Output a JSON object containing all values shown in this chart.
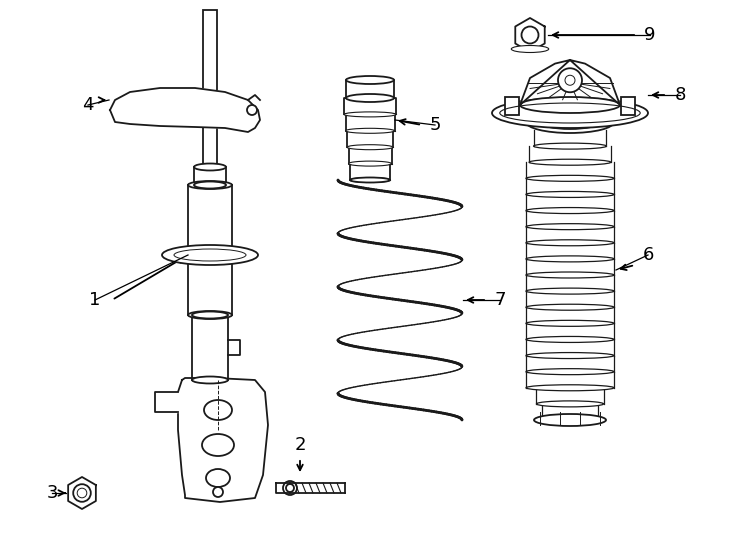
{
  "bg_color": "#ffffff",
  "line_color": "#1a1a1a",
  "line_width": 1.3,
  "fig_width": 7.34,
  "fig_height": 5.4,
  "font_size": 13
}
